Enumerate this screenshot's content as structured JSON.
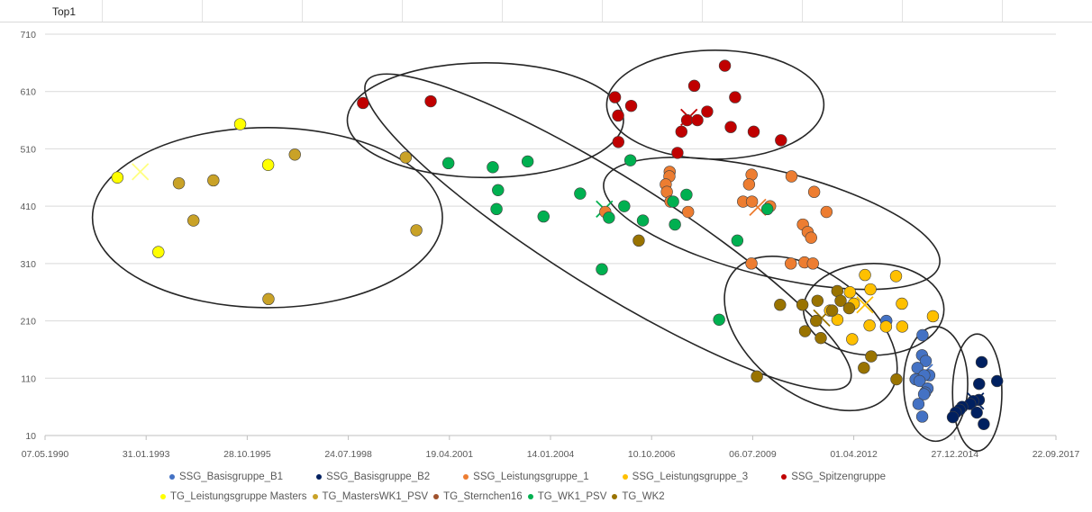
{
  "sheet": {
    "cell_title": "Top1"
  },
  "chart_data": {
    "type": "scatter",
    "title": "",
    "xlabel": "",
    "ylabel": "",
    "x_is_date": true,
    "xlim": [
      "1990-05-07",
      "2017-09-22"
    ],
    "ylim": [
      10,
      710
    ],
    "x_ticks": [
      "07.05.1990",
      "31.01.1993",
      "28.10.1995",
      "24.07.1998",
      "19.04.2001",
      "14.01.2004",
      "10.10.2006",
      "06.07.2009",
      "01.04.2012",
      "27.12.2014",
      "22.09.2017"
    ],
    "y_ticks": [
      10,
      110,
      210,
      310,
      410,
      510,
      610,
      710
    ],
    "grid": "horizontal",
    "legend_position": "bottom",
    "series": [
      {
        "name": "SSG_Basisgruppe_B1",
        "color": "#4472C4",
        "points": [
          [
            "2014-02-10",
            185
          ],
          [
            "2014-02-05",
            150
          ],
          [
            "2014-03-14",
            140
          ],
          [
            "2013-12-22",
            128
          ],
          [
            "2014-04-18",
            115
          ],
          [
            "2014-02-27",
            115
          ],
          [
            "2013-12-03",
            108
          ],
          [
            "2014-01-12",
            105
          ],
          [
            "2014-04-01",
            92
          ],
          [
            "2014-03-08",
            85
          ],
          [
            "2014-02-25",
            82
          ],
          [
            "2014-01-01",
            65
          ],
          [
            "2014-02-07",
            43
          ],
          [
            "2013-02-17",
            210
          ]
        ]
      },
      {
        "name": "SSG_Basisgruppe_B2",
        "color": "#002060",
        "points": [
          [
            "2015-09-18",
            138
          ],
          [
            "2016-02-18",
            105
          ],
          [
            "2015-08-24",
            100
          ],
          [
            "2015-08-21",
            72
          ],
          [
            "2015-06-26",
            70
          ],
          [
            "2015-05-27",
            65
          ],
          [
            "2015-03-09",
            60
          ],
          [
            "2015-02-12",
            55
          ],
          [
            "2015-01-04",
            50
          ],
          [
            "2015-10-09",
            30
          ],
          [
            "2014-12-07",
            42
          ],
          [
            "2015-08-01",
            50
          ]
        ]
      },
      {
        "name": "SSG_Leistungsgruppe_1",
        "color": "#ED7D31",
        "points": [
          [
            "2007-04-07",
            470
          ],
          [
            "2007-04-04",
            462
          ],
          [
            "2007-02-27",
            448
          ],
          [
            "2007-03-10",
            435
          ],
          [
            "2007-04-15",
            418
          ],
          [
            "2007-10-06",
            400
          ],
          [
            "2009-06-25",
            465
          ],
          [
            "2009-05-31",
            448
          ],
          [
            "2009-04-02",
            418
          ],
          [
            "2009-06-29",
            418
          ],
          [
            "2009-12-25",
            410
          ],
          [
            "2010-07-25",
            462
          ],
          [
            "2011-03-06",
            435
          ],
          [
            "2011-07-06",
            400
          ],
          [
            "2010-11-15",
            378
          ],
          [
            "2011-01-01",
            365
          ],
          [
            "2011-02-04",
            355
          ],
          [
            "2009-06-24",
            310
          ],
          [
            "2010-07-18",
            310
          ],
          [
            "2010-11-30",
            312
          ],
          [
            "2011-02-22",
            310
          ],
          [
            "2005-07-09",
            400
          ]
        ]
      },
      {
        "name": "SSG_Leistungsgruppe_3",
        "color": "#FFC000",
        "points": [
          [
            "2012-07-21",
            290
          ],
          [
            "2013-05-24",
            288
          ],
          [
            "2012-09-13",
            265
          ],
          [
            "2012-02-23",
            260
          ],
          [
            "2012-04-02",
            240
          ],
          [
            "2013-07-21",
            240
          ],
          [
            "2014-05-24",
            218
          ],
          [
            "2012-09-04",
            202
          ],
          [
            "2013-02-14",
            200
          ],
          [
            "2013-07-24",
            200
          ],
          [
            "2012-03-16",
            178
          ],
          [
            "2011-08-10",
            228
          ],
          [
            "2011-10-22",
            212
          ]
        ]
      },
      {
        "name": "SSG_Spitzengruppe",
        "color": "#C00000",
        "points": [
          [
            "2008-10-04",
            655
          ],
          [
            "2005-10-13",
            600
          ],
          [
            "2006-03-22",
            585
          ],
          [
            "2005-11-13",
            568
          ],
          [
            "2007-12-06",
            620
          ],
          [
            "2009-01-13",
            600
          ],
          [
            "2008-04-12",
            575
          ],
          [
            "2007-09-26",
            560
          ],
          [
            "2008-01-06",
            560
          ],
          [
            "2007-08-01",
            540
          ],
          [
            "2008-12-01",
            548
          ],
          [
            "2009-07-16",
            540
          ],
          [
            "2010-04-12",
            525
          ],
          [
            "2005-11-15",
            522
          ],
          [
            "2007-06-23",
            503
          ],
          [
            "1998-12-16",
            590
          ],
          [
            "2000-10-16",
            593
          ]
        ]
      },
      {
        "name": "TG_Leistungsgruppe Masters",
        "color": "#FFFF00",
        "points": [
          [
            "1992-04-22",
            460
          ],
          [
            "1993-06-01",
            330
          ],
          [
            "1995-08-19",
            553
          ],
          [
            "1996-05-22",
            482
          ]
        ]
      },
      {
        "name": "TG_MastersWK1_PSV",
        "color": "#C9A227",
        "points": [
          [
            "1997-02-10",
            500
          ],
          [
            "1993-12-21",
            450
          ],
          [
            "1994-11-27",
            455
          ],
          [
            "1994-05-14",
            385
          ],
          [
            "2000-02-12",
            495
          ],
          [
            "2000-05-27",
            368
          ],
          [
            "1996-05-25",
            248
          ]
        ]
      },
      {
        "name": "TG_Sternchen16",
        "color": "#A0522D",
        "points": []
      },
      {
        "name": "TG_WK1_PSV",
        "color": "#00B050",
        "points": [
          [
            "2001-04-09",
            485
          ],
          [
            "2003-06-02",
            488
          ],
          [
            "2002-06-22",
            478
          ],
          [
            "2002-08-13",
            438
          ],
          [
            "2002-07-29",
            405
          ],
          [
            "2003-11-06",
            392
          ],
          [
            "2004-11-02",
            432
          ],
          [
            "2006-03-14",
            490
          ],
          [
            "2006-01-12",
            410
          ],
          [
            "2005-08-14",
            390
          ],
          [
            "2006-07-16",
            385
          ],
          [
            "2007-09-20",
            430
          ],
          [
            "2007-05-11",
            418
          ],
          [
            "2007-05-29",
            378
          ],
          [
            "2009-02-04",
            350
          ],
          [
            "2009-11-28",
            405
          ],
          [
            "2005-06-05",
            300
          ],
          [
            "2008-08-08",
            212
          ]
        ]
      },
      {
        "name": "TG_WK2",
        "color": "#997300",
        "points": [
          [
            "2011-10-21",
            262
          ],
          [
            "2011-11-23",
            245
          ],
          [
            "2011-04-08",
            245
          ],
          [
            "2012-02-15",
            232
          ],
          [
            "2011-08-31",
            228
          ],
          [
            "2010-04-03",
            238
          ],
          [
            "2010-11-10",
            238
          ],
          [
            "2011-03-25",
            210
          ],
          [
            "2010-12-06",
            192
          ],
          [
            "2011-05-11",
            180
          ],
          [
            "2012-09-20",
            148
          ],
          [
            "2012-07-10",
            128
          ],
          [
            "2013-05-28",
            108
          ],
          [
            "2009-08-17",
            113
          ],
          [
            "2006-06-05",
            350
          ]
        ]
      }
    ]
  },
  "legend_rows": [
    [
      "SSG_Basisgruppe_B1",
      "SSG_Basisgruppe_B2",
      "SSG_Leistungsgruppe_1",
      "SSG_Leistungsgruppe_3",
      "SSG_Spitzengruppe"
    ],
    [
      "TG_Leistungsgruppe Masters",
      "TG_MastersWK1_PSV",
      "TG_Sternchen16",
      "TG_WK1_PSV",
      "TG_WK2"
    ]
  ],
  "centroids": [
    {
      "date": "1992-12-04",
      "value": 470,
      "color": "#FFFF80"
    },
    {
      "date": "2005-06-30",
      "value": 405,
      "color": "#00B050"
    },
    {
      "date": "2007-10-15",
      "value": 565,
      "color": "#C00000"
    },
    {
      "date": "2009-08-25",
      "value": 408,
      "color": "#ED7D31"
    },
    {
      "date": "2011-05-20",
      "value": 215,
      "color": "#997300"
    },
    {
      "date": "2012-07-20",
      "value": 238,
      "color": "#FFC000"
    },
    {
      "date": "2014-03-01",
      "value": 120,
      "color": "#4472C4"
    },
    {
      "date": "2015-07-20",
      "value": 70,
      "color": "#002060"
    }
  ],
  "cluster_ellipses": [
    {
      "center": [
        "1996-05-15",
        390
      ],
      "radius": [
        "1995-02-01",
        157
      ],
      "rotation_deg": 0
    },
    {
      "center": [
        "2002-04-10",
        560
      ],
      "radius": [
        "1994-02-01",
        100
      ],
      "rotation_deg": 0
    },
    {
      "center": [
        "2008-07-01",
        587
      ],
      "radius": [
        "1993-04-15",
        95
      ],
      "rotation_deg": 0
    },
    {
      "center": [
        "2005-08-05",
        365
      ],
      "radius": [
        "1998-01-20",
        98
      ],
      "rotation_deg": 32
    },
    {
      "center": [
        "2010-01-10",
        380
      ],
      "radius": [
        "1995-01-10",
        92
      ],
      "rotation_deg": 14
    },
    {
      "center": [
        "2011-02-01",
        188
      ],
      "radius": [
        "1993-01-10",
        105
      ],
      "rotation_deg": 38
    },
    {
      "center": [
        "2012-10-15",
        230
      ],
      "radius": [
        "1992-04-01",
        80
      ],
      "rotation_deg": 0
    },
    {
      "center": [
        "2014-06-20",
        100
      ],
      "radius": [
        "1991-03-20",
        100
      ],
      "rotation_deg": 0
    },
    {
      "center": [
        "2015-08-05",
        85
      ],
      "radius": [
        "1991-01-06",
        102
      ],
      "rotation_deg": 0
    }
  ]
}
